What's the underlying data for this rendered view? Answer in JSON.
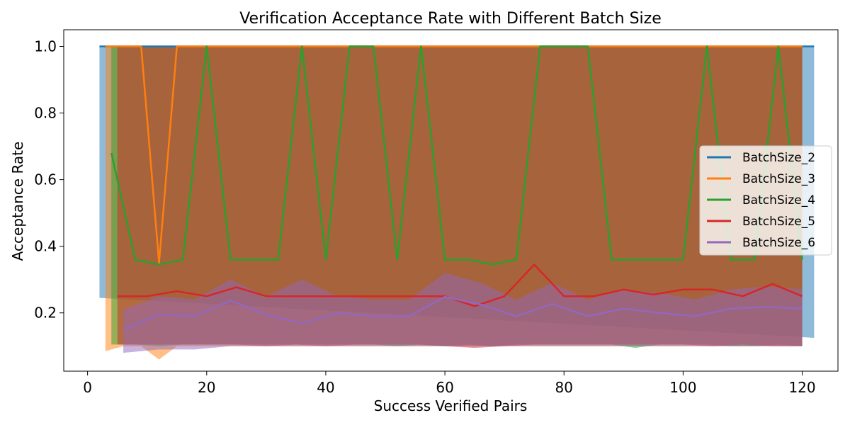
{
  "chart_data": {
    "type": "line",
    "title": "Verification Acceptance Rate with Different Batch Size",
    "xlabel": "Success Verified Pairs",
    "ylabel": "Acceptance Rate",
    "xlim": [
      -4,
      126
    ],
    "ylim": [
      0.025,
      1.05
    ],
    "xticks": [
      0,
      20,
      40,
      60,
      80,
      100,
      120
    ],
    "yticks": [
      0.2,
      0.4,
      0.6,
      0.8,
      1.0
    ],
    "xtick_labels": [
      "0",
      "20",
      "40",
      "60",
      "80",
      "100",
      "120"
    ],
    "ytick_labels": [
      "0.2",
      "0.4",
      "0.6",
      "0.8",
      "1.0"
    ],
    "grid": false,
    "legend_position": "center-right",
    "series": [
      {
        "name": "BatchSize_2",
        "color": "#1f77b4",
        "x": [
          2,
          122
        ],
        "y": [
          1.0,
          1.0
        ],
        "band_upper": [
          1.0,
          1.0
        ],
        "band_lower": [
          0.245,
          0.125
        ]
      },
      {
        "name": "BatchSize_3",
        "color": "#ff7f0e",
        "x": [
          3,
          6,
          9,
          12,
          15,
          18,
          21,
          24,
          27,
          30,
          33,
          36,
          39,
          42,
          45,
          48,
          51,
          54,
          57,
          60,
          63,
          66,
          69,
          72,
          75,
          78,
          81,
          84,
          87,
          90,
          93,
          96,
          99,
          102,
          105,
          108,
          111,
          114,
          117,
          120
        ],
        "y": [
          1.0,
          1.0,
          1.0,
          0.35,
          1.0,
          1.0,
          1.0,
          1.0,
          1.0,
          1.0,
          1.0,
          1.0,
          1.0,
          1.0,
          1.0,
          1.0,
          1.0,
          1.0,
          1.0,
          1.0,
          1.0,
          1.0,
          1.0,
          1.0,
          1.0,
          1.0,
          1.0,
          1.0,
          1.0,
          1.0,
          1.0,
          1.0,
          1.0,
          1.0,
          1.0,
          1.0,
          1.0,
          1.0,
          1.0,
          1.0
        ],
        "band_upper": [
          1.0,
          1.0,
          1.0,
          1.0,
          1.0,
          1.0,
          1.0,
          1.0,
          1.0,
          1.0,
          1.0,
          1.0,
          1.0,
          1.0,
          1.0,
          1.0,
          1.0,
          1.0,
          1.0,
          1.0,
          1.0,
          1.0,
          1.0,
          1.0,
          1.0,
          1.0,
          1.0,
          1.0,
          1.0,
          1.0,
          1.0,
          1.0,
          1.0,
          1.0,
          1.0,
          1.0,
          1.0,
          1.0,
          1.0,
          1.0
        ],
        "band_lower": [
          0.085,
          0.1,
          0.1,
          0.06,
          0.1,
          0.1,
          0.1,
          0.1,
          0.1,
          0.1,
          0.1,
          0.1,
          0.1,
          0.1,
          0.1,
          0.1,
          0.1,
          0.1,
          0.1,
          0.1,
          0.1,
          0.1,
          0.1,
          0.1,
          0.1,
          0.1,
          0.1,
          0.1,
          0.1,
          0.1,
          0.1,
          0.1,
          0.1,
          0.1,
          0.1,
          0.1,
          0.1,
          0.1,
          0.1,
          0.1
        ]
      },
      {
        "name": "BatchSize_4",
        "color": "#2ca02c",
        "x": [
          4,
          8,
          12,
          16,
          20,
          24,
          28,
          32,
          36,
          40,
          44,
          48,
          52,
          56,
          60,
          64,
          68,
          72,
          76,
          80,
          84,
          88,
          92,
          96,
          100,
          104,
          108,
          112,
          116,
          120
        ],
        "y": [
          0.68,
          0.36,
          0.345,
          0.36,
          1.0,
          0.36,
          0.36,
          0.36,
          1.0,
          0.36,
          1.0,
          1.0,
          0.36,
          1.0,
          0.36,
          0.36,
          0.345,
          0.36,
          1.0,
          1.0,
          1.0,
          0.36,
          0.36,
          0.36,
          0.36,
          1.0,
          0.36,
          0.36,
          1.0,
          0.36
        ],
        "band_upper": [
          1.0,
          1.0,
          1.0,
          1.0,
          1.0,
          1.0,
          1.0,
          1.0,
          1.0,
          1.0,
          1.0,
          1.0,
          1.0,
          1.0,
          1.0,
          1.0,
          1.0,
          1.0,
          1.0,
          1.0,
          1.0,
          1.0,
          1.0,
          1.0,
          1.0,
          1.0,
          1.0,
          1.0,
          1.0,
          1.0
        ],
        "band_lower": [
          0.105,
          0.105,
          0.1,
          0.105,
          0.105,
          0.105,
          0.105,
          0.105,
          0.105,
          0.105,
          0.105,
          0.105,
          0.1,
          0.105,
          0.1,
          0.105,
          0.1,
          0.105,
          0.105,
          0.105,
          0.105,
          0.105,
          0.095,
          0.105,
          0.105,
          0.105,
          0.1,
          0.1,
          0.105,
          0.1
        ]
      },
      {
        "name": "BatchSize_5",
        "color": "#d62728",
        "x": [
          5,
          10,
          15,
          20,
          25,
          30,
          35,
          40,
          45,
          50,
          55,
          60,
          65,
          70,
          75,
          80,
          85,
          90,
          95,
          100,
          105,
          110,
          115,
          120
        ],
        "y": [
          0.25,
          0.25,
          0.265,
          0.25,
          0.277,
          0.25,
          0.25,
          0.25,
          0.25,
          0.25,
          0.25,
          0.25,
          0.22,
          0.25,
          0.345,
          0.25,
          0.25,
          0.27,
          0.255,
          0.27,
          0.27,
          0.25,
          0.287,
          0.25
        ],
        "band_upper": [
          1.0,
          1.0,
          1.0,
          1.0,
          1.0,
          1.0,
          1.0,
          1.0,
          1.0,
          1.0,
          1.0,
          1.0,
          1.0,
          1.0,
          1.0,
          1.0,
          1.0,
          1.0,
          1.0,
          1.0,
          1.0,
          1.0,
          1.0,
          1.0
        ],
        "band_lower": [
          0.105,
          0.105,
          0.105,
          0.105,
          0.105,
          0.1,
          0.105,
          0.1,
          0.105,
          0.105,
          0.105,
          0.1,
          0.095,
          0.1,
          0.105,
          0.105,
          0.105,
          0.105,
          0.105,
          0.105,
          0.1,
          0.105,
          0.1,
          0.1
        ]
      },
      {
        "name": "BatchSize_6",
        "color": "#9467bd",
        "x": [
          6,
          12,
          18,
          24,
          30,
          36,
          42,
          48,
          54,
          60,
          66,
          72,
          78,
          84,
          90,
          96,
          102,
          108,
          114,
          120
        ],
        "y": [
          0.148,
          0.195,
          0.19,
          0.237,
          0.195,
          0.168,
          0.2,
          0.19,
          0.19,
          0.248,
          0.225,
          0.19,
          0.227,
          0.19,
          0.213,
          0.2,
          0.19,
          0.213,
          0.218,
          0.213
        ],
        "band_upper": [
          0.21,
          0.25,
          0.24,
          0.3,
          0.25,
          0.3,
          0.25,
          0.24,
          0.24,
          0.32,
          0.29,
          0.24,
          0.29,
          0.24,
          0.27,
          0.26,
          0.24,
          0.27,
          0.28,
          0.27
        ],
        "band_lower": [
          0.08,
          0.09,
          0.09,
          0.1,
          0.1,
          0.1,
          0.1,
          0.1,
          0.1,
          0.1,
          0.1,
          0.1,
          0.1,
          0.1,
          0.1,
          0.1,
          0.1,
          0.1,
          0.1,
          0.1
        ]
      }
    ]
  }
}
